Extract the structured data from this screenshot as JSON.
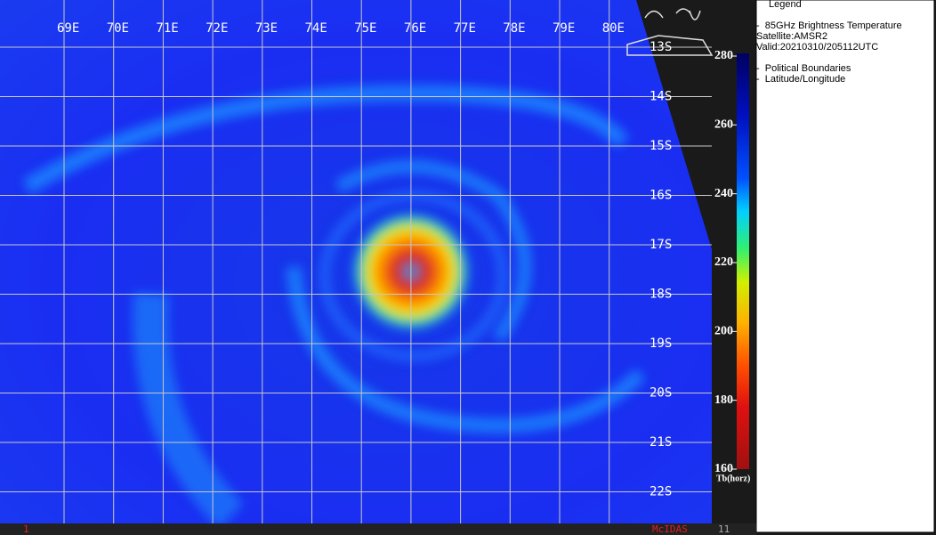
{
  "map": {
    "lon_labels": [
      "69E",
      "70E",
      "71E",
      "72E",
      "73E",
      "74E",
      "75E",
      "76E",
      "77E",
      "78E",
      "79E",
      "80E"
    ],
    "lat_labels": [
      "13S",
      "14S",
      "15S",
      "16S",
      "17S",
      "18S",
      "19S",
      "20S",
      "21S",
      "22S"
    ]
  },
  "colorbar": {
    "range": [
      160,
      280
    ],
    "ticks": [
      280,
      260,
      240,
      220,
      200,
      180,
      160
    ],
    "label": "Tb(horz)"
  },
  "legend": {
    "title": "Legend",
    "product": "-  85GHz Brightness Temperature",
    "satellite": "Satellite:AMSR2",
    "valid": "Valid:20210310/205112UTC",
    "items": [
      "-  Political Boundaries",
      "-  Latitude/Longitude"
    ]
  },
  "footer": {
    "left": "1",
    "center": "McIDAS",
    "right": "11"
  }
}
